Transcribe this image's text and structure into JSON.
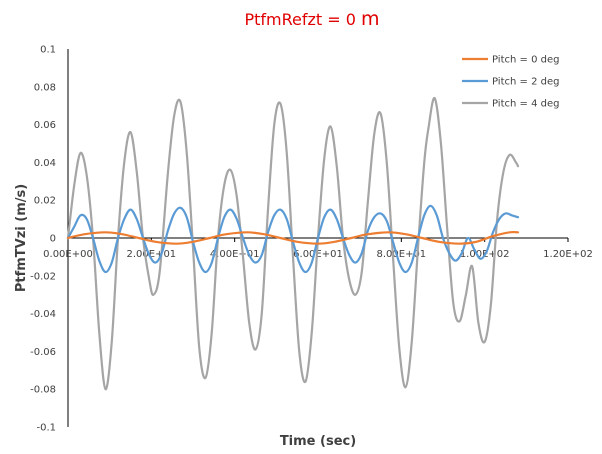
{
  "chart_data": {
    "type": "line",
    "title_main": "PtfmRefzt",
    "title_eq": " = 0 ",
    "title_unit": "m",
    "xlabel": "Time (sec)",
    "ylabel": "PtfmTVzi  (m/s)",
    "xlim": [
      0,
      120
    ],
    "ylim": [
      -0.1,
      0.1
    ],
    "x_ticks": [
      {
        "value": 0,
        "label": "0.00E+00"
      },
      {
        "value": 20,
        "label": "2.00E+01"
      },
      {
        "value": 40,
        "label": "4.00E+01"
      },
      {
        "value": 60,
        "label": "6.00E+01"
      },
      {
        "value": 80,
        "label": "8.00E+01"
      },
      {
        "value": 100,
        "label": "1.00E+02"
      },
      {
        "value": 120,
        "label": "1.20E+02"
      }
    ],
    "y_ticks": [
      {
        "value": 0.1,
        "label": "0.1"
      },
      {
        "value": 0.08,
        "label": "0.08"
      },
      {
        "value": 0.06,
        "label": "0.06"
      },
      {
        "value": 0.04,
        "label": "0.04"
      },
      {
        "value": 0.02,
        "label": "0.02"
      },
      {
        "value": 0,
        "label": "0"
      },
      {
        "value": -0.02,
        "label": "-0.02"
      },
      {
        "value": -0.04,
        "label": "-0.04"
      },
      {
        "value": -0.06,
        "label": "-0.06"
      },
      {
        "value": -0.08,
        "label": "-0.08"
      },
      {
        "value": -0.1,
        "label": "-0.1"
      }
    ],
    "legend_position": "top-right",
    "grid": false,
    "series": [
      {
        "name": "Pitch = 0 deg",
        "color": "#ED7D31",
        "points": [
          [
            0,
            0
          ],
          [
            4,
            0.002
          ],
          [
            9,
            0.003
          ],
          [
            13,
            0.002
          ],
          [
            17,
            0
          ],
          [
            21,
            -0.002
          ],
          [
            26,
            -0.003
          ],
          [
            30,
            -0.002
          ],
          [
            34,
            0
          ],
          [
            38,
            0.002
          ],
          [
            43,
            0.003
          ],
          [
            47,
            0.002
          ],
          [
            51,
            0
          ],
          [
            55,
            -0.002
          ],
          [
            60,
            -0.003
          ],
          [
            64,
            -0.002
          ],
          [
            68,
            0
          ],
          [
            72,
            0.002
          ],
          [
            77,
            0.003
          ],
          [
            81,
            0.002
          ],
          [
            85,
            0
          ],
          [
            89,
            -0.002
          ],
          [
            94,
            -0.003
          ],
          [
            98,
            -0.002
          ],
          [
            102,
            0.001
          ],
          [
            106,
            0.003
          ],
          [
            108,
            0.003
          ]
        ]
      },
      {
        "name": "Pitch = 2 deg",
        "color": "#5B9BD5",
        "points": [
          [
            0,
            0
          ],
          [
            1.5,
            0.006
          ],
          [
            3,
            0.012
          ],
          [
            4.5,
            0.01
          ],
          [
            6,
            0
          ],
          [
            7.5,
            -0.012
          ],
          [
            9,
            -0.018
          ],
          [
            10.5,
            -0.013
          ],
          [
            12,
            0
          ],
          [
            13.5,
            0.01
          ],
          [
            15,
            0.015
          ],
          [
            16.5,
            0.01
          ],
          [
            18,
            0
          ],
          [
            19.5,
            -0.009
          ],
          [
            21,
            -0.013
          ],
          [
            22.5,
            -0.008
          ],
          [
            24,
            0.004
          ],
          [
            25.5,
            0.013
          ],
          [
            27,
            0.016
          ],
          [
            28.5,
            0.011
          ],
          [
            30,
            -0.002
          ],
          [
            31.5,
            -0.013
          ],
          [
            33,
            -0.018
          ],
          [
            34.5,
            -0.013
          ],
          [
            36,
            0
          ],
          [
            37.5,
            0.011
          ],
          [
            39,
            0.015
          ],
          [
            40.5,
            0.01
          ],
          [
            42,
            0
          ],
          [
            43.5,
            -0.009
          ],
          [
            45,
            -0.013
          ],
          [
            46.5,
            -0.009
          ],
          [
            48,
            0.003
          ],
          [
            49.5,
            0.012
          ],
          [
            51,
            0.015
          ],
          [
            52.5,
            0.01
          ],
          [
            54,
            -0.002
          ],
          [
            55.5,
            -0.013
          ],
          [
            57,
            -0.018
          ],
          [
            58.5,
            -0.013
          ],
          [
            60,
            0
          ],
          [
            61.5,
            0.011
          ],
          [
            63,
            0.015
          ],
          [
            64.5,
            0.01
          ],
          [
            66,
            0
          ],
          [
            67.5,
            -0.009
          ],
          [
            69,
            -0.013
          ],
          [
            70.5,
            -0.008
          ],
          [
            72,
            0.004
          ],
          [
            73.5,
            0.011
          ],
          [
            75,
            0.013
          ],
          [
            76.5,
            0.009
          ],
          [
            78,
            -0.002
          ],
          [
            79.5,
            -0.013
          ],
          [
            81,
            -0.018
          ],
          [
            82.5,
            -0.013
          ],
          [
            84,
            0
          ],
          [
            85.5,
            0.012
          ],
          [
            87,
            0.017
          ],
          [
            88.5,
            0.012
          ],
          [
            90,
            0
          ],
          [
            91.5,
            -0.008
          ],
          [
            93,
            -0.012
          ],
          [
            94.5,
            -0.008
          ],
          [
            96,
            0
          ],
          [
            97.5,
            -0.006
          ],
          [
            99,
            -0.011
          ],
          [
            100.5,
            -0.007
          ],
          [
            102,
            0.003
          ],
          [
            103.5,
            0.01
          ],
          [
            105,
            0.013
          ],
          [
            106.5,
            0.012
          ],
          [
            108,
            0.011
          ]
        ]
      },
      {
        "name": "Pitch = 4 deg",
        "color": "#A5A5A5",
        "points": [
          [
            0,
            0
          ],
          [
            1.5,
            0.028
          ],
          [
            3,
            0.045
          ],
          [
            4.5,
            0.033
          ],
          [
            6,
            0
          ],
          [
            7.5,
            -0.05
          ],
          [
            9,
            -0.08
          ],
          [
            10.5,
            -0.055
          ],
          [
            12,
            0
          ],
          [
            13.5,
            0.04
          ],
          [
            15,
            0.056
          ],
          [
            16.5,
            0.035
          ],
          [
            18,
            0
          ],
          [
            19.5,
            -0.022
          ],
          [
            20.5,
            -0.03
          ],
          [
            22,
            -0.018
          ],
          [
            24,
            0.035
          ],
          [
            25.5,
            0.065
          ],
          [
            27,
            0.072
          ],
          [
            28.5,
            0.045
          ],
          [
            30,
            -0.005
          ],
          [
            31.5,
            -0.058
          ],
          [
            33,
            -0.074
          ],
          [
            34.5,
            -0.05
          ],
          [
            36,
            0
          ],
          [
            37.5,
            0.028
          ],
          [
            39,
            0.036
          ],
          [
            40.5,
            0.022
          ],
          [
            42,
            -0.01
          ],
          [
            43.5,
            -0.045
          ],
          [
            45,
            -0.059
          ],
          [
            46.5,
            -0.04
          ],
          [
            48,
            0.015
          ],
          [
            49.5,
            0.06
          ],
          [
            51,
            0.071
          ],
          [
            52.5,
            0.045
          ],
          [
            54,
            -0.01
          ],
          [
            55.5,
            -0.06
          ],
          [
            57,
            -0.076
          ],
          [
            58.5,
            -0.05
          ],
          [
            60,
            0
          ],
          [
            61.5,
            0.042
          ],
          [
            63,
            0.059
          ],
          [
            64.5,
            0.038
          ],
          [
            66,
            0
          ],
          [
            67.5,
            -0.022
          ],
          [
            69,
            -0.03
          ],
          [
            70.5,
            -0.018
          ],
          [
            72,
            0.02
          ],
          [
            73.5,
            0.055
          ],
          [
            75,
            0.066
          ],
          [
            76.5,
            0.04
          ],
          [
            78,
            -0.01
          ],
          [
            79.5,
            -0.058
          ],
          [
            81,
            -0.079
          ],
          [
            82.5,
            -0.055
          ],
          [
            84,
            -0.005
          ],
          [
            85.5,
            0.04
          ],
          [
            86.5,
            0.058
          ],
          [
            88,
            0.074
          ],
          [
            89.5,
            0.05
          ],
          [
            91,
            0.005
          ],
          [
            92.5,
            -0.035
          ],
          [
            94,
            -0.044
          ],
          [
            95.5,
            -0.03
          ],
          [
            97,
            -0.015
          ],
          [
            98.5,
            -0.045
          ],
          [
            100,
            -0.055
          ],
          [
            101.5,
            -0.035
          ],
          [
            103,
            0.01
          ],
          [
            104.5,
            0.035
          ],
          [
            106,
            0.044
          ],
          [
            107.5,
            0.04
          ],
          [
            108,
            0.038
          ]
        ]
      }
    ]
  }
}
